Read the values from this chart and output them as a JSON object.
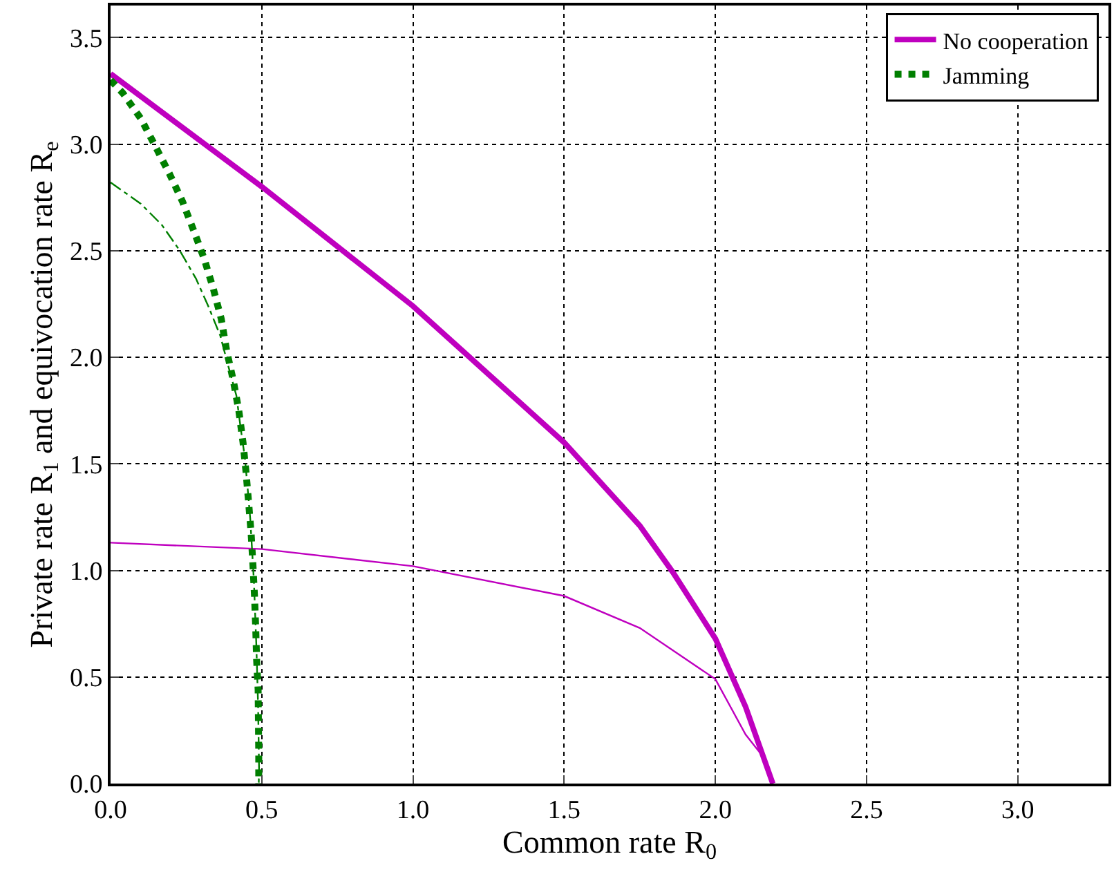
{
  "chart_data": {
    "type": "line",
    "xlabel": "Common rate R$_{0}$",
    "ylabel": "Private rate R$_{1}$ and equivocation rate R$_{e}$",
    "xlim": [
      0,
      3.3
    ],
    "ylim": [
      0,
      3.65
    ],
    "xticks": [
      {
        "value": 0,
        "label": "0.0"
      },
      {
        "value": 0.5,
        "label": "0.5"
      },
      {
        "value": 1,
        "label": "1.0"
      },
      {
        "value": 1.5,
        "label": "1.5"
      },
      {
        "value": 2,
        "label": "2.0"
      },
      {
        "value": 2.5,
        "label": "2.5"
      },
      {
        "value": 3,
        "label": "3.0"
      }
    ],
    "yticks": [
      {
        "value": 0,
        "label": "0.0"
      },
      {
        "value": 0.5,
        "label": "0.5"
      },
      {
        "value": 1,
        "label": "1.0"
      },
      {
        "value": 1.5,
        "label": "1.5"
      },
      {
        "value": 2,
        "label": "2.0"
      },
      {
        "value": 2.5,
        "label": "2.5"
      },
      {
        "value": 3,
        "label": "3.0"
      },
      {
        "value": 3.5,
        "label": "3.5"
      }
    ],
    "grid": true,
    "legend": "top right",
    "marker": "none",
    "series": [
      {
        "name": "No cooperation",
        "color": "#bf00bf",
        "line_style": "solid",
        "x": [
          0,
          0.5,
          1.0,
          1.25,
          1.5,
          1.75,
          1.86,
          2.0,
          2.1,
          2.19
        ],
        "values": [
          3.33,
          2.8,
          2.24,
          1.92,
          1.6,
          1.21,
          0.99,
          0.68,
          0.36,
          0
        ]
      },
      {
        "name": "Jamming",
        "color": "#007f00",
        "line_style": "dotted",
        "x": [
          0,
          0.04,
          0.1,
          0.148,
          0.195,
          0.238,
          0.276,
          0.31,
          0.34,
          0.366,
          0.384,
          0.406,
          0.424,
          0.438,
          0.448,
          0.457,
          0.465,
          0.471,
          0.476,
          0.48,
          0.483,
          0.488,
          0.489,
          0.49,
          0.49
        ],
        "values": [
          3.3,
          3.24,
          3.12,
          2.99,
          2.86,
          2.73,
          2.59,
          2.46,
          2.32,
          2.18,
          2.03,
          1.89,
          1.75,
          1.6,
          1.46,
          1.31,
          1.17,
          1.02,
          0.88,
          0.73,
          0.58,
          0.44,
          0.29,
          0.14,
          0
        ]
      },
      {
        "color": "#bf00bf",
        "line_style": "solid",
        "x": [
          0,
          0.5,
          1.0,
          1.5,
          1.75,
          2.0,
          2.1,
          2.15,
          2.19
        ],
        "values": [
          1.13,
          1.1,
          1.02,
          0.88,
          0.73,
          0.49,
          0.23,
          0.14,
          0
        ]
      },
      {
        "color": "#007f00",
        "line_style": "dashed",
        "x": [
          0,
          0.1,
          0.17,
          0.229,
          0.282,
          0.323,
          0.363,
          0.389,
          0.416,
          0.43,
          0.444,
          0.453,
          0.462,
          0.474,
          0.482,
          0.488,
          0.491,
          0.49
        ],
        "values": [
          2.82,
          2.72,
          2.62,
          2.5,
          2.37,
          2.24,
          2.1,
          1.96,
          1.82,
          1.67,
          1.53,
          1.39,
          1.24,
          0.95,
          0.65,
          0.36,
          0.07,
          0
        ]
      }
    ]
  }
}
